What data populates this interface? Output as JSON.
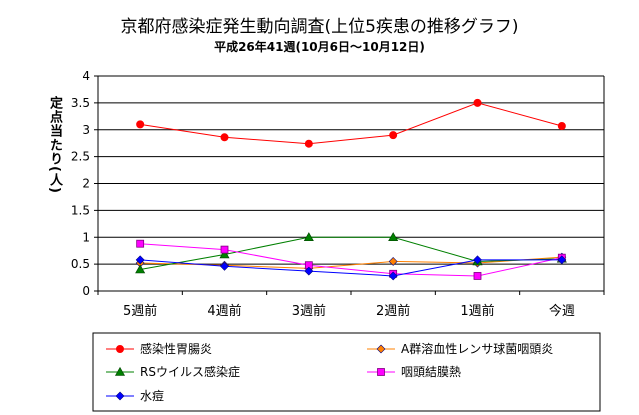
{
  "chart_data": {
    "type": "line",
    "title": "京都府感染症発生動向調査(上位5疾患の推移グラフ)",
    "subtitle": "平成26年41週(10月6日〜10月12日)",
    "ylabel": "定点当たり(人)",
    "xlabel": "",
    "categories": [
      "5週前",
      "4週前",
      "3週前",
      "2週前",
      "1週前",
      "今週"
    ],
    "ylim": [
      0,
      4
    ],
    "yticks": [
      "0",
      "0.5",
      "1",
      "1.5",
      "2",
      "2.5",
      "3",
      "3.5",
      "4"
    ],
    "grid": true,
    "legend_position": "bottom",
    "series": [
      {
        "name": "感染性胃腸炎",
        "color": "#ff0000",
        "marker": "circle",
        "values": [
          3.1,
          2.86,
          2.74,
          2.9,
          3.5,
          3.07
        ]
      },
      {
        "name": "A群溶血性レンサ球菌咽頭炎",
        "color": "#ff8000",
        "marker": "diamond",
        "values": [
          0.52,
          0.48,
          0.42,
          0.55,
          0.52,
          0.63
        ]
      },
      {
        "name": "RSウイルス感染症",
        "color": "#008000",
        "marker": "triangle",
        "values": [
          0.4,
          0.68,
          1.0,
          1.0,
          0.55,
          0.6
        ]
      },
      {
        "name": "咽頭結膜熱",
        "color": "#ff00ff",
        "marker": "square",
        "values": [
          0.88,
          0.77,
          0.48,
          0.32,
          0.28,
          0.62
        ]
      },
      {
        "name": "水痘",
        "color": "#0000ff",
        "marker": "diamond",
        "values": [
          0.58,
          0.46,
          0.37,
          0.28,
          0.58,
          0.58
        ]
      }
    ]
  }
}
